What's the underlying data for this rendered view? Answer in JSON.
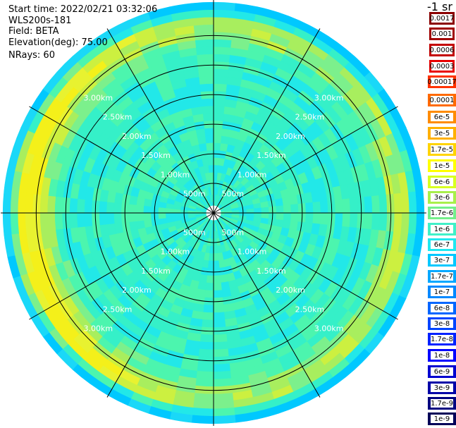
{
  "info": {
    "start_time": "Start time: 2022/02/21 03:32:06",
    "instrument": "WLS200s-181",
    "field": "Field: BETA",
    "elevation": "Elevation(deg): 75.00",
    "nrays": "NRays: 60"
  },
  "colorbar": {
    "title": "-1 sr",
    "labels": [
      "0.0017",
      "0.001",
      "0.0006",
      "0.0003",
      "0.00017",
      "0.0001",
      "6e-5",
      "3e-5",
      "1.7e-5",
      "1e-5",
      "6e-6",
      "3e-6",
      "1.7e-6",
      "1e-6",
      "6e-7",
      "3e-7",
      "1.7e-7",
      "1e-7",
      "6e-8",
      "3e-8",
      "1.7e-8",
      "1e-8",
      "6e-9",
      "3e-9",
      "1.7e-9",
      "1e-9"
    ],
    "colors": [
      "#8b0000",
      "#a00000",
      "#c40000",
      "#e80000",
      "#ff3300",
      "#ff6a00",
      "#ff8c00",
      "#ffb000",
      "#ffd400",
      "#ffff00",
      "#d8ff20",
      "#a8f04a",
      "#74ef8b",
      "#40f0c8",
      "#20e8f0",
      "#00c8ff",
      "#00a8ff",
      "#0088ff",
      "#0066ff",
      "#0044ff",
      "#0022ff",
      "#0000ff",
      "#0000d0",
      "#0000a8",
      "#000080",
      "#000058"
    ]
  },
  "chart_data": {
    "type": "heatmap",
    "projection": "polar PPI",
    "n_rays": 60,
    "range_max_km": 3.6,
    "range_gates_km": [
      0.125,
      0.25,
      0.375,
      0.5,
      0.625,
      0.75,
      0.875,
      1.0,
      1.125,
      1.25,
      1.375,
      1.5,
      1.625,
      1.75,
      1.875,
      2.0,
      2.125,
      2.25,
      2.375,
      2.5,
      2.625,
      2.75,
      2.875,
      3.0,
      3.125,
      3.25,
      3.375,
      3.5
    ],
    "range_rings_km": [
      0.5,
      1.0,
      1.5,
      2.0,
      2.5,
      3.0
    ],
    "ring_labels": [
      "500m",
      "1.00km",
      "1.50km",
      "2.00km",
      "2.50km",
      "3.00km"
    ],
    "spoke_angles_deg": [
      0,
      30,
      60,
      90,
      120,
      150,
      180,
      210,
      240,
      270,
      300,
      330
    ],
    "beta_profile_log10": [
      -5.85,
      -5.85,
      -5.85,
      -5.85,
      -5.85,
      -5.85,
      -5.85,
      -5.85,
      -5.8,
      -5.8,
      -5.8,
      -5.8,
      -5.8,
      -5.8,
      -5.8,
      -5.8,
      -5.85,
      -5.85,
      -5.85,
      -5.85,
      -5.8,
      -5.75,
      -5.7,
      -5.45,
      -5.3,
      -5.2,
      -5.5,
      -5.8
    ],
    "west_enhancement_log10": [
      0,
      0,
      0,
      0,
      0,
      0,
      0,
      0,
      0,
      0,
      0,
      0,
      0,
      0,
      0,
      0,
      0,
      0,
      0,
      0,
      0.1,
      0.25,
      0.35,
      0.45,
      0.5,
      0.45,
      0.35,
      0.2
    ],
    "edge_falloff_log10": [
      0,
      0,
      0,
      0,
      0,
      0,
      0,
      0,
      0,
      0,
      0,
      0,
      0,
      0,
      0,
      0,
      0,
      0,
      0,
      0,
      0,
      0,
      0,
      0,
      -0.05,
      -0.15,
      -0.4,
      -0.7
    ],
    "grid": true
  }
}
